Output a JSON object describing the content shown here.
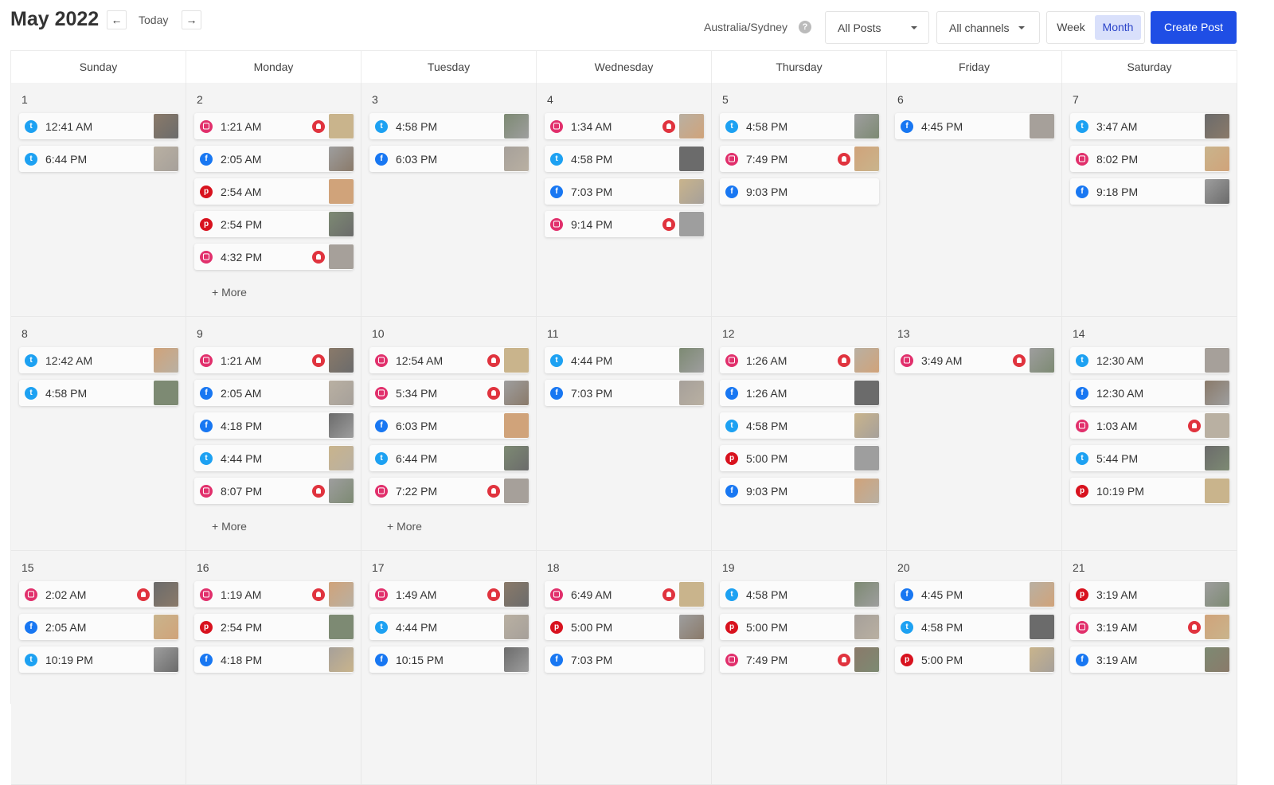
{
  "header": {
    "title": "May 2022",
    "prev_icon": "arrow-left-icon",
    "today_label": "Today",
    "next_icon": "arrow-right-icon",
    "timezone": "Australia/Sydney",
    "help_icon": "question-icon",
    "posts_filter": "All Posts",
    "channels_filter": "All channels",
    "view_week": "Week",
    "view_month": "Month",
    "active_view": "Month",
    "create_label": "Create Post"
  },
  "colors": {
    "twitter": "#1da1f2",
    "instagram": "#e1306c",
    "facebook": "#1877f2",
    "pinterest": "#d8121e",
    "accent": "#1f4ee5",
    "alert": "#e0333e"
  },
  "weekdays": [
    "Sunday",
    "Monday",
    "Tuesday",
    "Wednesday",
    "Thursday",
    "Friday",
    "Saturday"
  ],
  "more_label": "+ More",
  "days": [
    {
      "n": "1",
      "events": [
        {
          "t": "12:41 AM",
          "net": "twitter"
        },
        {
          "t": "6:44 PM",
          "net": "twitter"
        }
      ]
    },
    {
      "n": "2",
      "more": true,
      "events": [
        {
          "t": "1:21 AM",
          "net": "instagram",
          "alert": true
        },
        {
          "t": "2:05 AM",
          "net": "facebook"
        },
        {
          "t": "2:54 AM",
          "net": "pinterest"
        },
        {
          "t": "2:54 PM",
          "net": "pinterest"
        },
        {
          "t": "4:32 PM",
          "net": "instagram",
          "alert": true
        }
      ]
    },
    {
      "n": "3",
      "events": [
        {
          "t": "4:58 PM",
          "net": "twitter"
        },
        {
          "t": "6:03 PM",
          "net": "facebook"
        }
      ]
    },
    {
      "n": "4",
      "events": [
        {
          "t": "1:34 AM",
          "net": "instagram",
          "alert": true
        },
        {
          "t": "4:58 PM",
          "net": "twitter"
        },
        {
          "t": "7:03 PM",
          "net": "facebook"
        },
        {
          "t": "9:14 PM",
          "net": "instagram",
          "alert": true
        }
      ]
    },
    {
      "n": "5",
      "events": [
        {
          "t": "4:58 PM",
          "net": "twitter"
        },
        {
          "t": "7:49 PM",
          "net": "instagram",
          "alert": true
        },
        {
          "t": "9:03 PM",
          "net": "facebook",
          "nothumb": true
        }
      ]
    },
    {
      "n": "6",
      "events": [
        {
          "t": "4:45 PM",
          "net": "facebook"
        }
      ]
    },
    {
      "n": "7",
      "events": [
        {
          "t": "3:47 AM",
          "net": "twitter"
        },
        {
          "t": "8:02 PM",
          "net": "instagram"
        },
        {
          "t": "9:18 PM",
          "net": "facebook"
        }
      ]
    },
    {
      "n": "8",
      "events": [
        {
          "t": "12:42 AM",
          "net": "twitter"
        },
        {
          "t": "4:58 PM",
          "net": "twitter"
        }
      ]
    },
    {
      "n": "9",
      "more": true,
      "events": [
        {
          "t": "1:21 AM",
          "net": "instagram",
          "alert": true
        },
        {
          "t": "2:05 AM",
          "net": "facebook"
        },
        {
          "t": "4:18 PM",
          "net": "facebook"
        },
        {
          "t": "4:44 PM",
          "net": "twitter"
        },
        {
          "t": "8:07 PM",
          "net": "instagram",
          "alert": true
        }
      ]
    },
    {
      "n": "10",
      "more": true,
      "events": [
        {
          "t": "12:54 AM",
          "net": "instagram",
          "alert": true
        },
        {
          "t": "5:34 PM",
          "net": "instagram",
          "alert": true
        },
        {
          "t": "6:03 PM",
          "net": "facebook"
        },
        {
          "t": "6:44 PM",
          "net": "twitter"
        },
        {
          "t": "7:22 PM",
          "net": "instagram",
          "alert": true
        }
      ]
    },
    {
      "n": "11",
      "events": [
        {
          "t": "4:44 PM",
          "net": "twitter"
        },
        {
          "t": "7:03 PM",
          "net": "facebook"
        }
      ]
    },
    {
      "n": "12",
      "events": [
        {
          "t": "1:26 AM",
          "net": "instagram",
          "alert": true
        },
        {
          "t": "1:26 AM",
          "net": "facebook"
        },
        {
          "t": "4:58 PM",
          "net": "twitter"
        },
        {
          "t": "5:00 PM",
          "net": "pinterest"
        },
        {
          "t": "9:03 PM",
          "net": "facebook"
        }
      ]
    },
    {
      "n": "13",
      "events": [
        {
          "t": "3:49 AM",
          "net": "instagram",
          "alert": true
        }
      ]
    },
    {
      "n": "14",
      "events": [
        {
          "t": "12:30 AM",
          "net": "twitter"
        },
        {
          "t": "12:30 AM",
          "net": "facebook"
        },
        {
          "t": "1:03 AM",
          "net": "instagram",
          "alert": true
        },
        {
          "t": "5:44 PM",
          "net": "twitter"
        },
        {
          "t": "10:19 PM",
          "net": "pinterest"
        }
      ]
    },
    {
      "n": "15",
      "events": [
        {
          "t": "2:02 AM",
          "net": "instagram",
          "alert": true
        },
        {
          "t": "2:05 AM",
          "net": "facebook"
        },
        {
          "t": "10:19 PM",
          "net": "twitter"
        }
      ]
    },
    {
      "n": "16",
      "events": [
        {
          "t": "1:19 AM",
          "net": "instagram",
          "alert": true
        },
        {
          "t": "2:54 PM",
          "net": "pinterest"
        },
        {
          "t": "4:18 PM",
          "net": "facebook"
        }
      ]
    },
    {
      "n": "17",
      "events": [
        {
          "t": "1:49 AM",
          "net": "instagram",
          "alert": true
        },
        {
          "t": "4:44 PM",
          "net": "twitter"
        },
        {
          "t": "10:15 PM",
          "net": "facebook"
        }
      ]
    },
    {
      "n": "18",
      "events": [
        {
          "t": "6:49 AM",
          "net": "instagram",
          "alert": true
        },
        {
          "t": "5:00 PM",
          "net": "pinterest"
        },
        {
          "t": "7:03 PM",
          "net": "facebook",
          "nothumb": true
        }
      ]
    },
    {
      "n": "19",
      "events": [
        {
          "t": "4:58 PM",
          "net": "twitter"
        },
        {
          "t": "5:00 PM",
          "net": "pinterest"
        },
        {
          "t": "7:49 PM",
          "net": "instagram",
          "alert": true
        }
      ]
    },
    {
      "n": "20",
      "events": [
        {
          "t": "4:45 PM",
          "net": "facebook"
        },
        {
          "t": "4:58 PM",
          "net": "twitter"
        },
        {
          "t": "5:00 PM",
          "net": "pinterest"
        }
      ]
    },
    {
      "n": "21",
      "events": [
        {
          "t": "3:19 AM",
          "net": "pinterest"
        },
        {
          "t": "3:19 AM",
          "net": "instagram",
          "alert": true
        },
        {
          "t": "3:19 AM",
          "net": "facebook"
        }
      ]
    }
  ]
}
